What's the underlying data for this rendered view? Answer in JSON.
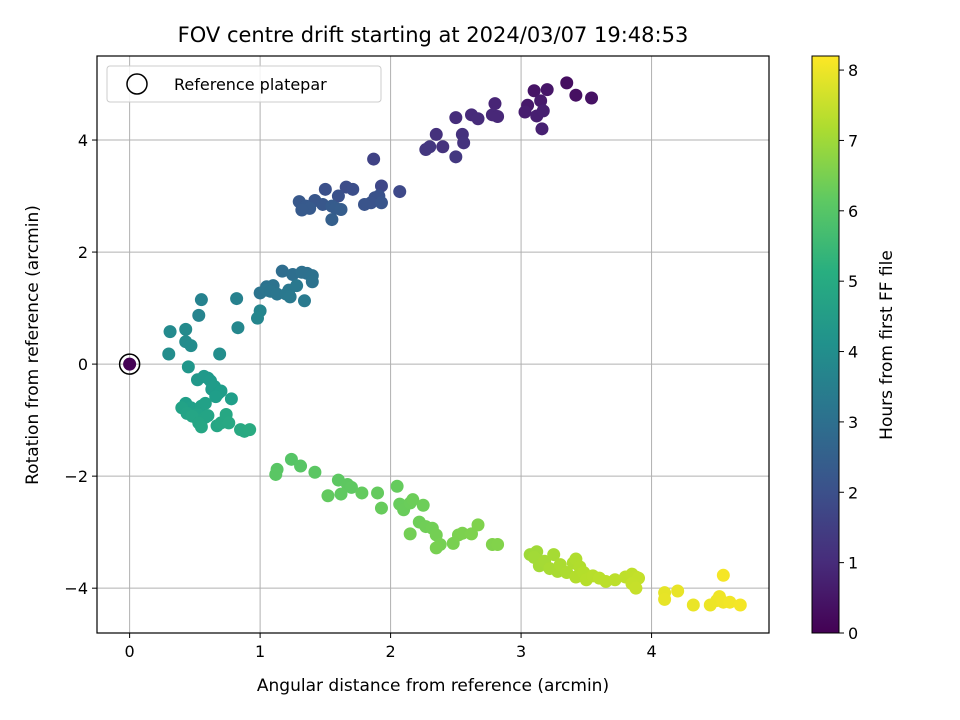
{
  "chart_data": {
    "type": "scatter",
    "title": "FOV centre drift starting at 2024/03/07 19:48:53",
    "xlabel": "Angular distance from reference (arcmin)",
    "ylabel": "Rotation from reference (arcmin)",
    "xlim": [
      -0.25,
      4.9
    ],
    "ylim": [
      -4.8,
      5.5
    ],
    "x_ticks": [
      0,
      1,
      2,
      3,
      4
    ],
    "y_ticks": [
      -4,
      -2,
      0,
      2,
      4
    ],
    "grid": true,
    "legend": {
      "position": "top-left",
      "entries": [
        "Reference platepar"
      ]
    },
    "colorbar": {
      "label": "Hours from first FF file",
      "range": [
        0,
        8.2
      ],
      "ticks": [
        0,
        1,
        2,
        3,
        4,
        5,
        6,
        7,
        8
      ],
      "colormap": "viridis"
    },
    "reference_point": {
      "x": 0,
      "y": 0
    },
    "points": [
      {
        "x": 0.0,
        "y": 0.0,
        "h": 0.0
      },
      {
        "x": 3.35,
        "y": 5.02,
        "h": 0.3
      },
      {
        "x": 3.42,
        "y": 4.8,
        "h": 0.35
      },
      {
        "x": 3.54,
        "y": 4.75,
        "h": 0.4
      },
      {
        "x": 3.1,
        "y": 4.88,
        "h": 0.45
      },
      {
        "x": 3.2,
        "y": 4.9,
        "h": 0.5
      },
      {
        "x": 3.05,
        "y": 4.62,
        "h": 0.55
      },
      {
        "x": 3.15,
        "y": 4.7,
        "h": 0.6
      },
      {
        "x": 3.03,
        "y": 4.5,
        "h": 0.65
      },
      {
        "x": 3.12,
        "y": 4.43,
        "h": 0.7
      },
      {
        "x": 3.17,
        "y": 4.52,
        "h": 0.72
      },
      {
        "x": 3.16,
        "y": 4.2,
        "h": 0.75
      },
      {
        "x": 2.8,
        "y": 4.65,
        "h": 0.85
      },
      {
        "x": 2.78,
        "y": 4.45,
        "h": 0.9
      },
      {
        "x": 2.82,
        "y": 4.42,
        "h": 0.92
      },
      {
        "x": 2.62,
        "y": 4.45,
        "h": 1.0
      },
      {
        "x": 2.67,
        "y": 4.38,
        "h": 1.02
      },
      {
        "x": 2.5,
        "y": 4.4,
        "h": 1.05
      },
      {
        "x": 2.35,
        "y": 4.1,
        "h": 1.15
      },
      {
        "x": 2.55,
        "y": 4.1,
        "h": 1.18
      },
      {
        "x": 2.4,
        "y": 3.88,
        "h": 1.2
      },
      {
        "x": 2.56,
        "y": 3.95,
        "h": 1.22
      },
      {
        "x": 2.27,
        "y": 3.83,
        "h": 1.3
      },
      {
        "x": 2.3,
        "y": 3.88,
        "h": 1.32
      },
      {
        "x": 2.5,
        "y": 3.7,
        "h": 1.35
      },
      {
        "x": 1.87,
        "y": 3.66,
        "h": 1.6
      },
      {
        "x": 1.93,
        "y": 3.18,
        "h": 1.75
      },
      {
        "x": 2.07,
        "y": 3.08,
        "h": 1.8
      },
      {
        "x": 1.66,
        "y": 3.16,
        "h": 1.9
      },
      {
        "x": 1.71,
        "y": 3.12,
        "h": 1.95
      },
      {
        "x": 1.5,
        "y": 3.12,
        "h": 2.0
      },
      {
        "x": 1.6,
        "y": 3.0,
        "h": 2.02
      },
      {
        "x": 1.88,
        "y": 2.97,
        "h": 2.05
      },
      {
        "x": 1.91,
        "y": 3.0,
        "h": 2.08
      },
      {
        "x": 1.85,
        "y": 2.88,
        "h": 2.1
      },
      {
        "x": 1.8,
        "y": 2.85,
        "h": 2.12
      },
      {
        "x": 1.93,
        "y": 2.88,
        "h": 2.15
      },
      {
        "x": 1.42,
        "y": 2.92,
        "h": 2.2
      },
      {
        "x": 1.48,
        "y": 2.85,
        "h": 2.22
      },
      {
        "x": 1.3,
        "y": 2.9,
        "h": 2.25
      },
      {
        "x": 1.35,
        "y": 2.82,
        "h": 2.28
      },
      {
        "x": 1.38,
        "y": 2.78,
        "h": 2.3
      },
      {
        "x": 1.32,
        "y": 2.75,
        "h": 2.32
      },
      {
        "x": 1.55,
        "y": 2.82,
        "h": 2.35
      },
      {
        "x": 1.58,
        "y": 2.78,
        "h": 2.38
      },
      {
        "x": 1.62,
        "y": 2.76,
        "h": 2.4
      },
      {
        "x": 1.55,
        "y": 2.58,
        "h": 2.45
      },
      {
        "x": 1.17,
        "y": 1.66,
        "h": 2.9
      },
      {
        "x": 1.25,
        "y": 1.6,
        "h": 2.95
      },
      {
        "x": 1.32,
        "y": 1.64,
        "h": 3.0
      },
      {
        "x": 1.36,
        "y": 1.62,
        "h": 3.02
      },
      {
        "x": 1.4,
        "y": 1.58,
        "h": 3.05
      },
      {
        "x": 1.4,
        "y": 1.47,
        "h": 3.08
      },
      {
        "x": 1.05,
        "y": 1.38,
        "h": 3.1
      },
      {
        "x": 1.1,
        "y": 1.4,
        "h": 3.12
      },
      {
        "x": 1.0,
        "y": 1.27,
        "h": 3.15
      },
      {
        "x": 1.05,
        "y": 1.32,
        "h": 3.18
      },
      {
        "x": 1.08,
        "y": 1.3,
        "h": 3.2
      },
      {
        "x": 1.13,
        "y": 1.25,
        "h": 3.22
      },
      {
        "x": 1.22,
        "y": 1.32,
        "h": 3.25
      },
      {
        "x": 1.28,
        "y": 1.4,
        "h": 3.28
      },
      {
        "x": 1.2,
        "y": 1.25,
        "h": 3.3
      },
      {
        "x": 1.23,
        "y": 1.2,
        "h": 3.32
      },
      {
        "x": 1.34,
        "y": 1.13,
        "h": 3.35
      },
      {
        "x": 0.82,
        "y": 1.17,
        "h": 3.6
      },
      {
        "x": 0.55,
        "y": 1.15,
        "h": 3.65
      },
      {
        "x": 0.53,
        "y": 0.87,
        "h": 3.7
      },
      {
        "x": 1.0,
        "y": 0.95,
        "h": 3.75
      },
      {
        "x": 0.98,
        "y": 0.82,
        "h": 3.78
      },
      {
        "x": 0.83,
        "y": 0.65,
        "h": 3.8
      },
      {
        "x": 0.31,
        "y": 0.58,
        "h": 3.9
      },
      {
        "x": 0.43,
        "y": 0.62,
        "h": 3.92
      },
      {
        "x": 0.43,
        "y": 0.4,
        "h": 3.95
      },
      {
        "x": 0.47,
        "y": 0.33,
        "h": 3.98
      },
      {
        "x": 0.3,
        "y": 0.18,
        "h": 4.0
      },
      {
        "x": 0.69,
        "y": 0.18,
        "h": 4.05
      },
      {
        "x": 0.45,
        "y": -0.05,
        "h": 4.3
      },
      {
        "x": 0.52,
        "y": -0.28,
        "h": 4.35
      },
      {
        "x": 0.57,
        "y": -0.22,
        "h": 4.38
      },
      {
        "x": 0.6,
        "y": -0.25,
        "h": 4.4
      },
      {
        "x": 0.62,
        "y": -0.3,
        "h": 4.42
      },
      {
        "x": 0.63,
        "y": -0.45,
        "h": 4.45
      },
      {
        "x": 0.65,
        "y": -0.4,
        "h": 4.48
      },
      {
        "x": 0.68,
        "y": -0.52,
        "h": 4.5
      },
      {
        "x": 0.7,
        "y": -0.48,
        "h": 4.52
      },
      {
        "x": 0.66,
        "y": -0.58,
        "h": 4.55
      },
      {
        "x": 0.78,
        "y": -0.62,
        "h": 4.58
      },
      {
        "x": 0.43,
        "y": -0.7,
        "h": 4.6
      },
      {
        "x": 0.47,
        "y": -0.78,
        "h": 4.62
      },
      {
        "x": 0.5,
        "y": -0.82,
        "h": 4.64
      },
      {
        "x": 0.55,
        "y": -0.75,
        "h": 4.66
      },
      {
        "x": 0.58,
        "y": -0.7,
        "h": 4.68
      },
      {
        "x": 0.4,
        "y": -0.78,
        "h": 4.7
      },
      {
        "x": 0.44,
        "y": -0.88,
        "h": 4.72
      },
      {
        "x": 0.52,
        "y": -0.9,
        "h": 4.74
      },
      {
        "x": 0.58,
        "y": -0.95,
        "h": 4.76
      },
      {
        "x": 0.6,
        "y": -0.92,
        "h": 4.78
      },
      {
        "x": 0.48,
        "y": -0.93,
        "h": 4.8
      },
      {
        "x": 0.53,
        "y": -1.05,
        "h": 4.82
      },
      {
        "x": 0.55,
        "y": -1.12,
        "h": 4.84
      },
      {
        "x": 0.67,
        "y": -1.1,
        "h": 4.86
      },
      {
        "x": 0.7,
        "y": -1.05,
        "h": 4.88
      },
      {
        "x": 0.74,
        "y": -0.9,
        "h": 4.9
      },
      {
        "x": 0.76,
        "y": -1.05,
        "h": 4.92
      },
      {
        "x": 0.85,
        "y": -1.17,
        "h": 4.95
      },
      {
        "x": 0.88,
        "y": -1.2,
        "h": 4.97
      },
      {
        "x": 0.92,
        "y": -1.17,
        "h": 5.0
      },
      {
        "x": 1.24,
        "y": -1.7,
        "h": 6.0
      },
      {
        "x": 1.31,
        "y": -1.82,
        "h": 6.02
      },
      {
        "x": 1.13,
        "y": -1.88,
        "h": 6.04
      },
      {
        "x": 1.12,
        "y": -1.97,
        "h": 6.06
      },
      {
        "x": 1.42,
        "y": -1.93,
        "h": 6.08
      },
      {
        "x": 1.6,
        "y": -2.07,
        "h": 6.1
      },
      {
        "x": 1.67,
        "y": -2.15,
        "h": 6.12
      },
      {
        "x": 1.7,
        "y": -2.2,
        "h": 6.14
      },
      {
        "x": 1.62,
        "y": -2.32,
        "h": 6.16
      },
      {
        "x": 1.52,
        "y": -2.35,
        "h": 6.18
      },
      {
        "x": 1.78,
        "y": -2.3,
        "h": 6.2
      },
      {
        "x": 1.9,
        "y": -2.3,
        "h": 6.22
      },
      {
        "x": 2.05,
        "y": -2.18,
        "h": 6.24
      },
      {
        "x": 1.93,
        "y": -2.57,
        "h": 6.26
      },
      {
        "x": 2.07,
        "y": -2.5,
        "h": 6.28
      },
      {
        "x": 2.1,
        "y": -2.6,
        "h": 6.3
      },
      {
        "x": 2.15,
        "y": -2.48,
        "h": 6.32
      },
      {
        "x": 2.17,
        "y": -2.42,
        "h": 6.34
      },
      {
        "x": 2.25,
        "y": -2.52,
        "h": 6.36
      },
      {
        "x": 2.22,
        "y": -2.82,
        "h": 6.38
      },
      {
        "x": 2.27,
        "y": -2.9,
        "h": 6.4
      },
      {
        "x": 2.32,
        "y": -2.93,
        "h": 6.42
      },
      {
        "x": 2.15,
        "y": -3.03,
        "h": 6.44
      },
      {
        "x": 2.35,
        "y": -3.05,
        "h": 6.46
      },
      {
        "x": 2.38,
        "y": -3.22,
        "h": 6.48
      },
      {
        "x": 2.35,
        "y": -3.28,
        "h": 6.5
      },
      {
        "x": 2.48,
        "y": -3.2,
        "h": 6.52
      },
      {
        "x": 2.52,
        "y": -3.05,
        "h": 6.54
      },
      {
        "x": 2.55,
        "y": -3.02,
        "h": 6.56
      },
      {
        "x": 2.62,
        "y": -3.03,
        "h": 6.58
      },
      {
        "x": 2.67,
        "y": -2.87,
        "h": 6.6
      },
      {
        "x": 2.78,
        "y": -3.22,
        "h": 6.62
      },
      {
        "x": 2.82,
        "y": -3.22,
        "h": 6.64
      },
      {
        "x": 3.07,
        "y": -3.4,
        "h": 7.0
      },
      {
        "x": 3.12,
        "y": -3.35,
        "h": 7.02
      },
      {
        "x": 3.1,
        "y": -3.45,
        "h": 7.04
      },
      {
        "x": 3.14,
        "y": -3.6,
        "h": 7.06
      },
      {
        "x": 3.18,
        "y": -3.52,
        "h": 7.08
      },
      {
        "x": 3.25,
        "y": -3.4,
        "h": 7.1
      },
      {
        "x": 3.22,
        "y": -3.65,
        "h": 7.12
      },
      {
        "x": 3.28,
        "y": -3.7,
        "h": 7.14
      },
      {
        "x": 3.3,
        "y": -3.58,
        "h": 7.16
      },
      {
        "x": 3.35,
        "y": -3.72,
        "h": 7.18
      },
      {
        "x": 3.4,
        "y": -3.55,
        "h": 7.2
      },
      {
        "x": 3.42,
        "y": -3.48,
        "h": 7.22
      },
      {
        "x": 3.45,
        "y": -3.62,
        "h": 7.24
      },
      {
        "x": 3.42,
        "y": -3.8,
        "h": 7.26
      },
      {
        "x": 3.48,
        "y": -3.72,
        "h": 7.28
      },
      {
        "x": 3.5,
        "y": -3.85,
        "h": 7.3
      },
      {
        "x": 3.55,
        "y": -3.78,
        "h": 7.32
      },
      {
        "x": 3.6,
        "y": -3.82,
        "h": 7.34
      },
      {
        "x": 3.65,
        "y": -3.88,
        "h": 7.36
      },
      {
        "x": 3.72,
        "y": -3.85,
        "h": 7.38
      },
      {
        "x": 3.8,
        "y": -3.8,
        "h": 7.4
      },
      {
        "x": 3.85,
        "y": -3.75,
        "h": 7.42
      },
      {
        "x": 3.88,
        "y": -3.8,
        "h": 7.44
      },
      {
        "x": 3.9,
        "y": -3.82,
        "h": 7.46
      },
      {
        "x": 3.85,
        "y": -3.92,
        "h": 7.48
      },
      {
        "x": 3.88,
        "y": -4.0,
        "h": 7.5
      },
      {
        "x": 4.1,
        "y": -4.08,
        "h": 7.9
      },
      {
        "x": 4.1,
        "y": -4.2,
        "h": 7.92
      },
      {
        "x": 4.2,
        "y": -4.05,
        "h": 7.94
      },
      {
        "x": 4.32,
        "y": -4.3,
        "h": 7.96
      },
      {
        "x": 4.45,
        "y": -4.3,
        "h": 7.98
      },
      {
        "x": 4.5,
        "y": -4.22,
        "h": 8.0
      },
      {
        "x": 4.52,
        "y": -4.15,
        "h": 8.02
      },
      {
        "x": 4.55,
        "y": -4.25,
        "h": 8.04
      },
      {
        "x": 4.6,
        "y": -4.25,
        "h": 8.06
      },
      {
        "x": 4.68,
        "y": -4.3,
        "h": 8.08
      },
      {
        "x": 4.55,
        "y": -3.77,
        "h": 8.1
      }
    ]
  }
}
